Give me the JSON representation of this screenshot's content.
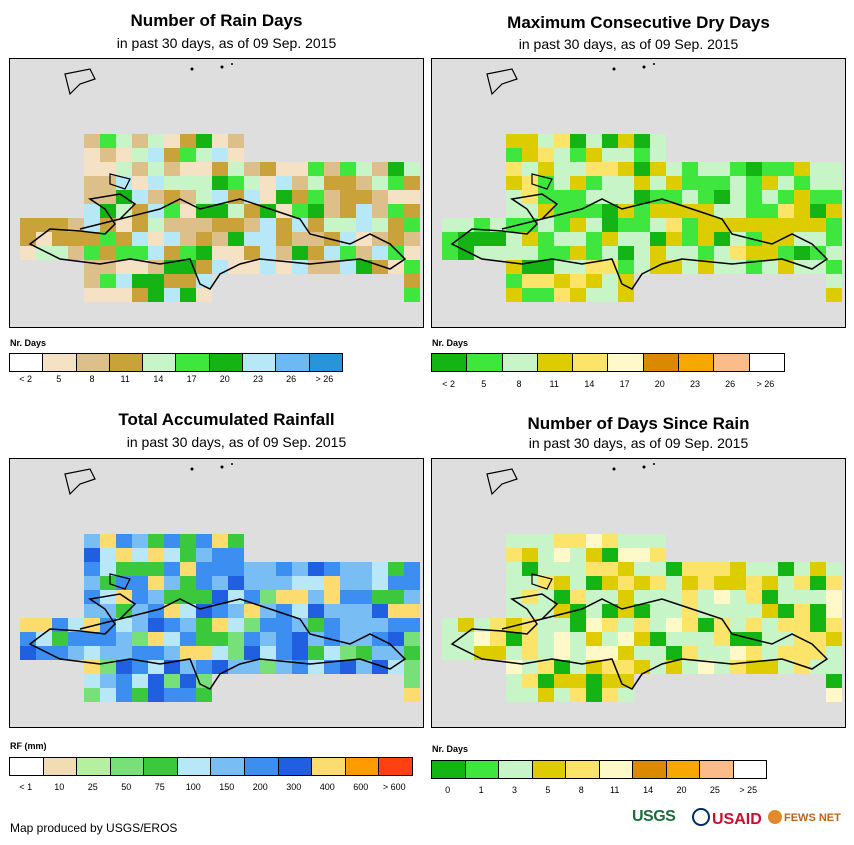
{
  "panels": [
    {
      "title": "Number of Rain Days",
      "subtitle": "in past 30 days, as of 09 Sep. 2015",
      "unit": "Nr. Days",
      "colors": [
        "#ffffff",
        "#f5e1c3",
        "#ddbf8a",
        "#c9a23a",
        "#c8f5c8",
        "#3ee63e",
        "#14b414",
        "#b7e8f7",
        "#6eb9f2",
        "#2a94d8"
      ],
      "ticks": [
        "< 2",
        "5",
        "8",
        "11",
        "14",
        "17",
        "20",
        "23",
        "26",
        "> 26"
      ]
    },
    {
      "title": "Maximum Consecutive Dry Days",
      "subtitle": "in past 30 days, as of 09 Sep. 2015",
      "unit": "Nr. Days",
      "colors": [
        "#14b414",
        "#3ee63e",
        "#c8f5c8",
        "#dccc00",
        "#fce46a",
        "#fff8c8",
        "#d98a00",
        "#f5a800",
        "#fcbc8a",
        "#ffffff"
      ],
      "ticks": [
        "< 2",
        "5",
        "8",
        "11",
        "14",
        "17",
        "20",
        "23",
        "26",
        "> 26"
      ]
    },
    {
      "title": "Total Accumulated Rainfall",
      "subtitle": "in past 30 days, as of 09 Sep. 2015",
      "unit": "RF (mm)",
      "colors": [
        "#ffffff",
        "#f2dcb4",
        "#b4f0a0",
        "#78e078",
        "#3cc83c",
        "#b8e8f8",
        "#78bef5",
        "#3c8ff0",
        "#2060e0",
        "#fcdc6e",
        "#ff9a00",
        "#ff4010"
      ],
      "ticks": [
        "< 1",
        "10",
        "25",
        "50",
        "75",
        "100",
        "150",
        "200",
        "300",
        "400",
        "600",
        "> 600"
      ]
    },
    {
      "title": "Number of Days Since Rain",
      "subtitle": "in past 30 days, as of 09 Sep. 2015",
      "unit": "Nr. Days",
      "colors": [
        "#14b414",
        "#3ee63e",
        "#c8f5c8",
        "#dccc00",
        "#fce46a",
        "#fff8c8",
        "#d98a00",
        "#f5a800",
        "#fcbc8a",
        "#ffffff"
      ],
      "ticks": [
        "0",
        "1",
        "3",
        "5",
        "8",
        "11",
        "14",
        "20",
        "25",
        "> 25"
      ]
    }
  ],
  "credit": "Map produced by USGS/EROS",
  "logos": {
    "usgs": "USGS",
    "usaid": "USAID",
    "fews": "FEWS NET"
  }
}
